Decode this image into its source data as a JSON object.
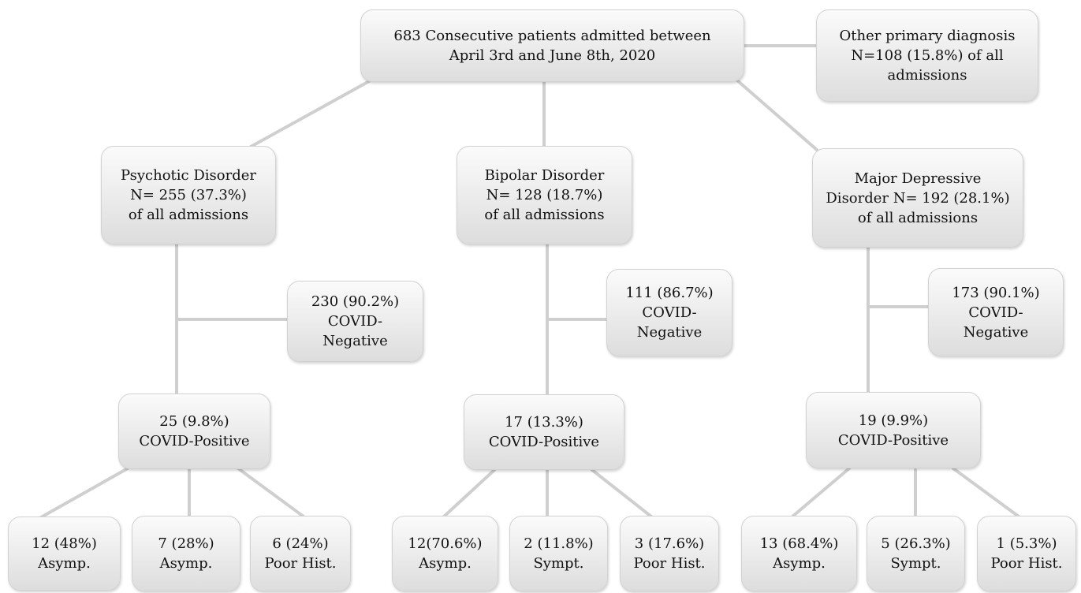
{
  "root": {
    "lines": [
      "683 Consecutive patients admitted between",
      "April 3rd and June 8th, 2020"
    ]
  },
  "other": {
    "lines": [
      "Other primary diagnosis",
      "N=108 (15.8%) of all",
      "admissions"
    ]
  },
  "psychotic": {
    "dx": {
      "lines": [
        "Psychotic Disorder",
        "N= 255 (37.3%)",
        "of all admissions"
      ]
    },
    "neg": {
      "lines": [
        "230 (90.2%)",
        "COVID-",
        "Negative"
      ]
    },
    "pos": {
      "lines": [
        "25 (9.8%)",
        "COVID-Positive"
      ]
    },
    "leaves": [
      {
        "lines": [
          "12 (48%)",
          "Asymp."
        ]
      },
      {
        "lines": [
          "7 (28%)",
          "Asymp."
        ]
      },
      {
        "lines": [
          "6 (24%)",
          "Poor Hist."
        ]
      }
    ]
  },
  "bipolar": {
    "dx": {
      "lines": [
        "Bipolar Disorder",
        "N= 128 (18.7%)",
        "of all admissions"
      ]
    },
    "neg": {
      "lines": [
        "111 (86.7%)",
        "COVID-",
        "Negative"
      ]
    },
    "pos": {
      "lines": [
        "17 (13.3%)",
        "COVID-Positive"
      ]
    },
    "leaves": [
      {
        "lines": [
          "12(70.6%)",
          "Asymp."
        ]
      },
      {
        "lines": [
          "2 (11.8%)",
          "Sympt."
        ]
      },
      {
        "lines": [
          "3 (17.6%)",
          "Poor Hist."
        ]
      }
    ]
  },
  "depressive": {
    "dx": {
      "lines": [
        "Major Depressive",
        "Disorder N= 192 (28.1%)",
        "of all admissions"
      ]
    },
    "neg": {
      "lines": [
        "173 (90.1%)",
        "COVID-",
        "Negative"
      ]
    },
    "pos": {
      "lines": [
        "19 (9.9%)",
        "COVID-Positive"
      ]
    },
    "leaves": [
      {
        "lines": [
          "13 (68.4%)",
          "Asymp."
        ]
      },
      {
        "lines": [
          "5 (26.3%)",
          "Sympt."
        ]
      },
      {
        "lines": [
          "1 (5.3%)",
          "Poor Hist."
        ]
      }
    ]
  }
}
